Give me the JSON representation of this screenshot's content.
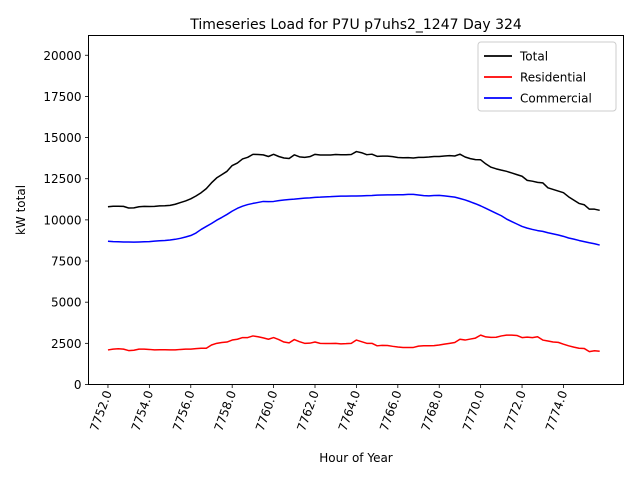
{
  "chart_data": {
    "type": "line",
    "title": "Timeseries Load for P7U p7uhs2_1247  Day 324",
    "xlabel": "Hour of Year",
    "ylabel": "kW total",
    "xlim": [
      7751.06,
      7776.9
    ],
    "ylim": [
      0,
      21200
    ],
    "x_ticks": [
      7752,
      7754,
      7756,
      7758,
      7760,
      7762,
      7764,
      7766,
      7768,
      7770,
      7772,
      7774
    ],
    "x_tick_labels": [
      "7752.0",
      "7754.0",
      "7756.0",
      "7758.0",
      "7760.0",
      "7762.0",
      "7764.0",
      "7766.0",
      "7768.0",
      "7770.0",
      "7772.0",
      "7774.0"
    ],
    "y_ticks": [
      0,
      2500,
      5000,
      7500,
      10000,
      12500,
      15000,
      17500,
      20000
    ],
    "y_tick_labels": [
      "0",
      "2500",
      "5000",
      "7500",
      "10000",
      "12500",
      "15000",
      "17500",
      "20000"
    ],
    "grid": false,
    "legend_position": "top-right",
    "x": [
      7752.0,
      7752.25,
      7752.5,
      7752.75,
      7753.0,
      7753.25,
      7753.5,
      7753.75,
      7754.0,
      7754.25,
      7754.5,
      7754.75,
      7755.0,
      7755.25,
      7755.5,
      7755.75,
      7756.0,
      7756.25,
      7756.5,
      7756.75,
      7757.0,
      7757.25,
      7757.5,
      7757.75,
      7758.0,
      7758.25,
      7758.5,
      7758.75,
      7759.0,
      7759.25,
      7759.5,
      7759.75,
      7760.0,
      7760.25,
      7760.5,
      7760.75,
      7761.0,
      7761.25,
      7761.5,
      7761.75,
      7762.0,
      7762.25,
      7762.5,
      7762.75,
      7763.0,
      7763.25,
      7763.5,
      7763.75,
      7764.0,
      7764.25,
      7764.5,
      7764.75,
      7765.0,
      7765.25,
      7765.5,
      7765.75,
      7766.0,
      7766.25,
      7766.5,
      7766.75,
      7767.0,
      7767.25,
      7767.5,
      7767.75,
      7768.0,
      7768.25,
      7768.5,
      7768.75,
      7769.0,
      7769.25,
      7769.5,
      7769.75,
      7770.0,
      7770.25,
      7770.5,
      7770.75,
      7771.0,
      7771.25,
      7771.5,
      7771.75,
      7772.0,
      7772.25,
      7772.5,
      7772.75,
      7773.0,
      7773.25,
      7773.5,
      7773.75,
      7774.0,
      7774.25,
      7774.5,
      7774.75,
      7775.0,
      7775.25,
      7775.5,
      7775.75
    ],
    "series": [
      {
        "name": "Total",
        "color": "#000000",
        "values": [
          10800,
          10830,
          10830,
          10820,
          10720,
          10730,
          10800,
          10820,
          10810,
          10820,
          10850,
          10860,
          10880,
          10950,
          11050,
          11150,
          11280,
          11450,
          11650,
          11900,
          12250,
          12550,
          12750,
          12950,
          13300,
          13450,
          13700,
          13800,
          13980,
          13970,
          13950,
          13850,
          13980,
          13850,
          13760,
          13730,
          13950,
          13830,
          13800,
          13840,
          13980,
          13940,
          13940,
          13940,
          13970,
          13960,
          13960,
          13970,
          14150,
          14080,
          13960,
          13990,
          13860,
          13870,
          13870,
          13840,
          13790,
          13770,
          13780,
          13760,
          13800,
          13800,
          13820,
          13850,
          13850,
          13880,
          13900,
          13880,
          13990,
          13820,
          13720,
          13660,
          13650,
          13400,
          13200,
          13100,
          13020,
          12950,
          12850,
          12750,
          12650,
          12400,
          12350,
          12280,
          12250,
          11950,
          11850,
          11750,
          11650,
          11400,
          11200,
          11000,
          10920,
          10650,
          10650,
          10580
        ]
      },
      {
        "name": "Residential",
        "color": "#ff0000",
        "values": [
          2100,
          2150,
          2170,
          2150,
          2060,
          2080,
          2150,
          2150,
          2130,
          2100,
          2110,
          2110,
          2100,
          2100,
          2130,
          2150,
          2150,
          2180,
          2200,
          2200,
          2400,
          2500,
          2550,
          2580,
          2700,
          2750,
          2850,
          2850,
          2950,
          2900,
          2830,
          2750,
          2850,
          2730,
          2580,
          2530,
          2730,
          2600,
          2500,
          2510,
          2580,
          2500,
          2490,
          2490,
          2500,
          2470,
          2480,
          2500,
          2700,
          2600,
          2500,
          2500,
          2350,
          2380,
          2370,
          2320,
          2280,
          2250,
          2250,
          2250,
          2330,
          2350,
          2350,
          2360,
          2400,
          2450,
          2500,
          2550,
          2750,
          2700,
          2760,
          2820,
          3000,
          2890,
          2860,
          2870,
          2950,
          3000,
          3000,
          2980,
          2850,
          2880,
          2850,
          2900,
          2700,
          2640,
          2580,
          2560,
          2450,
          2350,
          2270,
          2200,
          2190,
          2000,
          2050,
          2020
        ]
      },
      {
        "name": "Commercial",
        "color": "#0000ff",
        "values": [
          8700,
          8680,
          8670,
          8660,
          8660,
          8650,
          8660,
          8670,
          8680,
          8710,
          8730,
          8750,
          8780,
          8820,
          8880,
          8960,
          9050,
          9200,
          9420,
          9600,
          9780,
          9980,
          10150,
          10330,
          10530,
          10700,
          10830,
          10930,
          11000,
          11060,
          11120,
          11110,
          11120,
          11170,
          11210,
          11240,
          11260,
          11290,
          11320,
          11340,
          11370,
          11380,
          11400,
          11410,
          11430,
          11440,
          11440,
          11450,
          11450,
          11460,
          11470,
          11480,
          11500,
          11510,
          11520,
          11520,
          11530,
          11530,
          11550,
          11550,
          11510,
          11470,
          11460,
          11480,
          11490,
          11460,
          11420,
          11380,
          11300,
          11210,
          11100,
          10980,
          10850,
          10700,
          10550,
          10400,
          10250,
          10050,
          9900,
          9750,
          9600,
          9500,
          9420,
          9350,
          9300,
          9220,
          9150,
          9080,
          9000,
          8900,
          8830,
          8750,
          8680,
          8610,
          8550,
          8470
        ]
      }
    ]
  }
}
